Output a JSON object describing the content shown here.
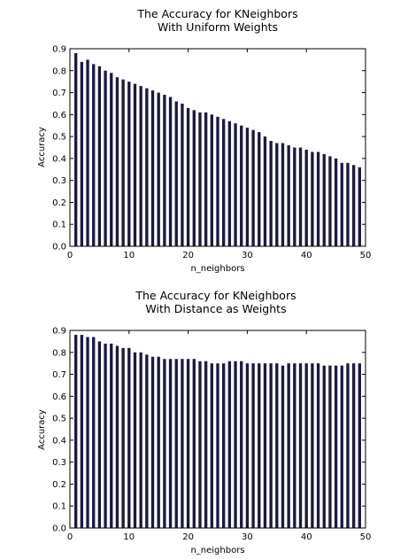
{
  "chart_data": [
    {
      "type": "bar",
      "title_line1": "The Accuracy for KNeighbors",
      "title_line2": "With Uniform Weights",
      "xlabel": "n_neighbors",
      "ylabel": "Accuracy",
      "xlim": [
        0,
        50
      ],
      "ylim": [
        0.0,
        0.9
      ],
      "xticks": [
        "0",
        "10",
        "20",
        "30",
        "40",
        "50"
      ],
      "yticks": [
        "0.0",
        "0.1",
        "0.2",
        "0.3",
        "0.4",
        "0.5",
        "0.6",
        "0.7",
        "0.8",
        "0.9"
      ],
      "bar_color": "#1a1a40",
      "grid": false,
      "x": [
        1,
        2,
        3,
        4,
        5,
        6,
        7,
        8,
        9,
        10,
        11,
        12,
        13,
        14,
        15,
        16,
        17,
        18,
        19,
        20,
        21,
        22,
        23,
        24,
        25,
        26,
        27,
        28,
        29,
        30,
        31,
        32,
        33,
        34,
        35,
        36,
        37,
        38,
        39,
        40,
        41,
        42,
        43,
        44,
        45,
        46,
        47,
        48,
        49
      ],
      "values": [
        0.88,
        0.84,
        0.85,
        0.83,
        0.82,
        0.8,
        0.79,
        0.77,
        0.76,
        0.75,
        0.74,
        0.73,
        0.72,
        0.71,
        0.7,
        0.69,
        0.68,
        0.66,
        0.65,
        0.63,
        0.62,
        0.61,
        0.61,
        0.6,
        0.59,
        0.58,
        0.57,
        0.56,
        0.55,
        0.54,
        0.53,
        0.52,
        0.5,
        0.48,
        0.47,
        0.47,
        0.46,
        0.45,
        0.45,
        0.44,
        0.43,
        0.43,
        0.42,
        0.41,
        0.4,
        0.38,
        0.38,
        0.37,
        0.36
      ]
    },
    {
      "type": "bar",
      "title_line1": "The Accuracy for KNeighbors",
      "title_line2": "With Distance as Weights",
      "xlabel": "n_neighbors",
      "ylabel": "Accuracy",
      "xlim": [
        0,
        50
      ],
      "ylim": [
        0.0,
        0.9
      ],
      "xticks": [
        "0",
        "10",
        "20",
        "30",
        "40",
        "50"
      ],
      "yticks": [
        "0.0",
        "0.1",
        "0.2",
        "0.3",
        "0.4",
        "0.5",
        "0.6",
        "0.7",
        "0.8",
        "0.9"
      ],
      "bar_color": "#1a1a40",
      "grid": false,
      "x": [
        1,
        2,
        3,
        4,
        5,
        6,
        7,
        8,
        9,
        10,
        11,
        12,
        13,
        14,
        15,
        16,
        17,
        18,
        19,
        20,
        21,
        22,
        23,
        24,
        25,
        26,
        27,
        28,
        29,
        30,
        31,
        32,
        33,
        34,
        35,
        36,
        37,
        38,
        39,
        40,
        41,
        42,
        43,
        44,
        45,
        46,
        47,
        48,
        49
      ],
      "values": [
        0.88,
        0.88,
        0.87,
        0.87,
        0.85,
        0.84,
        0.84,
        0.83,
        0.82,
        0.82,
        0.8,
        0.8,
        0.79,
        0.78,
        0.78,
        0.77,
        0.77,
        0.77,
        0.77,
        0.77,
        0.77,
        0.76,
        0.76,
        0.75,
        0.75,
        0.75,
        0.76,
        0.76,
        0.76,
        0.75,
        0.75,
        0.75,
        0.75,
        0.75,
        0.75,
        0.74,
        0.75,
        0.75,
        0.75,
        0.75,
        0.75,
        0.75,
        0.74,
        0.74,
        0.74,
        0.74,
        0.75,
        0.75,
        0.75
      ]
    }
  ]
}
